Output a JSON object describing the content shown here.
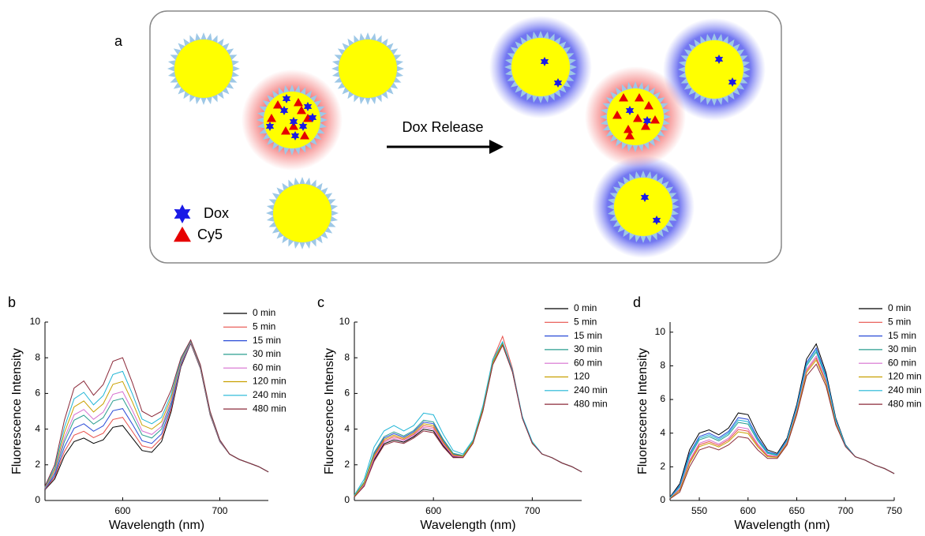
{
  "diagram": {
    "panel_label": "a",
    "arrow_label": "Dox Release",
    "legend": [
      "Dox",
      "Cy5"
    ]
  },
  "chart_data": [
    {
      "type": "line",
      "label": "b",
      "xlabel": "Wavelength (nm)",
      "ylabel": "Fluorescence Intensity",
      "x": [
        520,
        530,
        540,
        550,
        560,
        570,
        580,
        590,
        600,
        610,
        620,
        630,
        640,
        650,
        660,
        670,
        680,
        690,
        700,
        710,
        720,
        730,
        740,
        750
      ],
      "xlim": [
        520,
        750
      ],
      "xticks": [
        600,
        700
      ],
      "ylim": [
        0,
        10
      ],
      "yticks": [
        0,
        2,
        4,
        6,
        8,
        10
      ],
      "series": [
        {
          "name": "0 min",
          "color": "#000000",
          "values": [
            0.6,
            1.2,
            2.5,
            3.3,
            3.5,
            3.2,
            3.4,
            4.1,
            4.2,
            3.5,
            2.8,
            2.7,
            3.3,
            5.0,
            7.5,
            8.8,
            7.4,
            4.8,
            3.3,
            2.6,
            2.3,
            2.1,
            1.9,
            1.6
          ]
        },
        {
          "name": "5 min",
          "color": "#e8504a",
          "values": [
            0.62,
            1.3,
            2.74,
            3.66,
            3.88,
            3.52,
            3.77,
            4.54,
            4.66,
            3.87,
            3.06,
            2.94,
            3.5,
            5.14,
            7.56,
            8.82,
            7.42,
            4.82,
            3.31,
            2.6,
            2.3,
            2.1,
            1.9,
            1.6
          ]
        },
        {
          "name": "15 min",
          "color": "#2a4bd7",
          "values": [
            0.65,
            1.4,
            3.0,
            4.05,
            4.3,
            3.88,
            4.18,
            5.03,
            5.15,
            4.28,
            3.35,
            3.2,
            3.73,
            5.3,
            7.63,
            8.85,
            7.45,
            4.85,
            3.33,
            2.6,
            2.3,
            2.1,
            1.9,
            1.6
          ]
        },
        {
          "name": "30 min",
          "color": "#2a9d8f",
          "values": [
            0.68,
            1.52,
            3.3,
            4.5,
            4.78,
            4.28,
            4.64,
            5.58,
            5.72,
            4.74,
            3.68,
            3.5,
            4.0,
            5.48,
            7.7,
            8.88,
            7.48,
            4.88,
            3.34,
            2.6,
            2.3,
            2.1,
            1.9,
            1.6
          ]
        },
        {
          "name": "60 min",
          "color": "#d66fd0",
          "values": [
            0.7,
            1.6,
            3.5,
            4.8,
            5.1,
            4.55,
            4.95,
            5.95,
            6.1,
            5.05,
            3.9,
            3.7,
            4.15,
            5.6,
            7.75,
            8.9,
            7.5,
            4.9,
            3.35,
            2.6,
            2.3,
            2.1,
            1.9,
            1.6
          ]
        },
        {
          "name": "120 min",
          "color": "#c8a000",
          "values": [
            0.73,
            1.72,
            3.8,
            5.25,
            5.58,
            4.96,
            5.42,
            6.51,
            6.67,
            5.52,
            4.23,
            4.0,
            4.41,
            5.78,
            7.83,
            8.93,
            7.53,
            4.93,
            3.37,
            2.6,
            2.3,
            2.1,
            1.9,
            1.6
          ]
        },
        {
          "name": "240 min",
          "color": "#1fb5d6",
          "values": [
            0.76,
            1.84,
            4.1,
            5.7,
            6.06,
            5.36,
            5.88,
            7.06,
            7.24,
            5.98,
            4.56,
            4.3,
            4.66,
            5.96,
            7.9,
            8.96,
            7.56,
            4.96,
            3.38,
            2.6,
            2.3,
            2.1,
            1.9,
            1.6
          ]
        },
        {
          "name": "480 min",
          "color": "#8b2a3a",
          "values": [
            0.8,
            2.0,
            4.5,
            6.3,
            6.7,
            5.9,
            6.5,
            7.8,
            8.0,
            6.6,
            5.0,
            4.7,
            5.0,
            6.2,
            8.0,
            9.0,
            7.6,
            5.0,
            3.4,
            2.6,
            2.3,
            2.1,
            1.9,
            1.6
          ]
        }
      ]
    },
    {
      "type": "line",
      "label": "c",
      "xlabel": "Wavelength (nm)",
      "ylabel": "Fluorescence Intensity",
      "x": [
        520,
        530,
        540,
        550,
        560,
        570,
        580,
        590,
        600,
        610,
        620,
        630,
        640,
        650,
        660,
        670,
        680,
        690,
        700,
        710,
        720,
        730,
        740,
        750
      ],
      "xlim": [
        520,
        750
      ],
      "xticks": [
        600,
        700
      ],
      "ylim": [
        0,
        10
      ],
      "yticks": [
        0,
        2,
        4,
        6,
        8,
        10
      ],
      "series": [
        {
          "name": "0 min",
          "color": "#000000",
          "values": [
            0.21,
            0.84,
            2.28,
            3.18,
            3.39,
            3.27,
            3.57,
            4.0,
            3.9,
            3.07,
            2.44,
            2.42,
            3.22,
            5.03,
            7.63,
            8.72,
            7.21,
            4.61,
            3.21,
            2.6,
            2.4,
            2.1,
            1.9,
            1.6
          ]
        },
        {
          "name": "5 min",
          "color": "#e8504a",
          "values": [
            0.23,
            0.92,
            2.44,
            3.34,
            3.57,
            3.41,
            3.71,
            4.2,
            4.1,
            3.21,
            2.52,
            2.46,
            3.26,
            5.09,
            7.9,
            9.2,
            7.4,
            4.63,
            3.23,
            2.6,
            2.4,
            2.1,
            1.9,
            1.6
          ]
        },
        {
          "name": "15 min",
          "color": "#2a4bd7",
          "values": [
            0.25,
            1.0,
            2.6,
            3.5,
            3.75,
            3.55,
            3.85,
            4.4,
            4.3,
            3.35,
            2.6,
            2.5,
            3.3,
            5.15,
            7.75,
            8.8,
            7.25,
            4.65,
            3.25,
            2.6,
            2.4,
            2.1,
            1.9,
            1.6
          ]
        },
        {
          "name": "30 min",
          "color": "#2a9d8f",
          "values": [
            0.26,
            1.04,
            2.68,
            3.58,
            3.84,
            3.62,
            3.92,
            4.5,
            4.4,
            3.42,
            2.64,
            2.52,
            3.32,
            5.18,
            7.78,
            8.82,
            7.26,
            4.66,
            3.26,
            2.6,
            2.4,
            2.1,
            1.9,
            1.6
          ]
        },
        {
          "name": "60 min",
          "color": "#d66fd0",
          "values": [
            0.22,
            0.88,
            2.36,
            3.26,
            3.48,
            3.34,
            3.64,
            4.1,
            4.0,
            3.14,
            2.48,
            2.44,
            3.24,
            5.06,
            7.66,
            8.74,
            7.22,
            4.62,
            3.22,
            2.6,
            2.4,
            2.1,
            1.9,
            1.6
          ]
        },
        {
          "name": "120",
          "color": "#c8a000",
          "values": [
            0.24,
            0.96,
            2.52,
            3.42,
            3.66,
            3.48,
            3.78,
            4.3,
            4.2,
            3.28,
            2.56,
            2.48,
            3.28,
            5.12,
            7.72,
            8.78,
            7.24,
            4.64,
            3.24,
            2.6,
            2.4,
            2.1,
            1.9,
            1.6
          ]
        },
        {
          "name": "240 min",
          "color": "#1fb5d6",
          "values": [
            0.3,
            1.2,
            3.0,
            3.9,
            4.2,
            3.9,
            4.2,
            4.9,
            4.8,
            3.7,
            2.8,
            2.6,
            3.4,
            5.3,
            7.9,
            8.9,
            7.3,
            4.7,
            3.3,
            2.6,
            2.4,
            2.1,
            1.9,
            1.6
          ]
        },
        {
          "name": "480 min",
          "color": "#8b2a3a",
          "values": [
            0.2,
            0.8,
            2.2,
            3.1,
            3.3,
            3.2,
            3.5,
            3.9,
            3.8,
            3.0,
            2.4,
            2.4,
            3.2,
            5.0,
            7.6,
            8.7,
            7.2,
            4.6,
            3.2,
            2.6,
            2.4,
            2.1,
            1.9,
            1.6
          ]
        }
      ]
    },
    {
      "type": "line",
      "label": "d",
      "xlabel": "Wavelength (nm)",
      "ylabel": "Fluorescence Intensity",
      "x": [
        520,
        530,
        540,
        550,
        560,
        570,
        580,
        590,
        600,
        610,
        620,
        630,
        640,
        650,
        660,
        670,
        680,
        690,
        700,
        710,
        720,
        730,
        740,
        750
      ],
      "xlim": [
        520,
        750
      ],
      "xticks": [
        550,
        600,
        650,
        700,
        750
      ],
      "ylim": [
        0,
        10.6
      ],
      "yticks": [
        0,
        2,
        4,
        6,
        8,
        10
      ],
      "series": [
        {
          "name": "0 min",
          "color": "#000000",
          "values": [
            0.2,
            1.0,
            3.0,
            4.0,
            4.2,
            3.9,
            4.3,
            5.2,
            5.1,
            3.9,
            3.0,
            2.8,
            3.7,
            5.7,
            8.4,
            9.3,
            7.6,
            4.9,
            3.3,
            2.6,
            2.4,
            2.1,
            1.9,
            1.6
          ]
        },
        {
          "name": "5 min",
          "color": "#e8504a",
          "values": [
            0.13,
            0.65,
            2.3,
            3.3,
            3.5,
            3.27,
            3.6,
            4.22,
            4.12,
            3.27,
            2.65,
            2.59,
            3.42,
            5.28,
            7.7,
            8.46,
            7.04,
            4.62,
            3.23,
            2.6,
            2.4,
            2.1,
            1.9,
            1.6
          ]
        },
        {
          "name": "15 min",
          "color": "#2a4bd7",
          "values": [
            0.18,
            0.9,
            2.8,
            3.8,
            4.0,
            3.72,
            4.1,
            4.92,
            4.82,
            3.72,
            2.9,
            2.74,
            3.62,
            5.58,
            8.2,
            9.06,
            7.44,
            4.82,
            3.28,
            2.6,
            2.4,
            2.1,
            1.9,
            1.6
          ]
        },
        {
          "name": "30 min",
          "color": "#2a9d8f",
          "values": [
            0.16,
            0.8,
            2.6,
            3.6,
            3.8,
            3.54,
            3.9,
            4.64,
            4.54,
            3.54,
            2.8,
            2.68,
            3.54,
            5.46,
            8.0,
            8.82,
            7.28,
            4.74,
            3.26,
            2.6,
            2.4,
            2.1,
            1.9,
            1.6
          ]
        },
        {
          "name": "60 min",
          "color": "#d66fd0",
          "values": [
            0.14,
            0.7,
            2.4,
            3.4,
            3.6,
            3.36,
            3.7,
            4.36,
            4.26,
            3.36,
            2.7,
            2.62,
            3.46,
            5.34,
            7.8,
            8.58,
            7.12,
            4.66,
            3.24,
            2.6,
            2.4,
            2.1,
            1.9,
            1.6
          ]
        },
        {
          "name": "120 min",
          "color": "#c8a000",
          "values": [
            0.12,
            0.6,
            2.2,
            3.2,
            3.4,
            3.18,
            3.5,
            4.08,
            3.98,
            3.18,
            2.6,
            2.56,
            3.38,
            5.22,
            7.6,
            8.34,
            6.96,
            4.58,
            3.22,
            2.6,
            2.4,
            2.1,
            1.9,
            1.6
          ]
        },
        {
          "name": "240 min",
          "color": "#1fb5d6",
          "values": [
            0.17,
            0.85,
            2.7,
            3.7,
            3.9,
            3.63,
            4.0,
            4.78,
            4.68,
            3.63,
            2.85,
            2.71,
            3.58,
            5.52,
            8.1,
            8.94,
            7.36,
            4.78,
            3.27,
            2.6,
            2.4,
            2.1,
            1.9,
            1.6
          ]
        },
        {
          "name": "480 min",
          "color": "#8b2a3a",
          "values": [
            0.1,
            0.5,
            2.0,
            3.0,
            3.2,
            3.0,
            3.3,
            3.8,
            3.7,
            3.0,
            2.5,
            2.5,
            3.3,
            5.1,
            7.4,
            8.1,
            6.8,
            4.5,
            3.2,
            2.6,
            2.4,
            2.1,
            1.9,
            1.6
          ]
        }
      ]
    }
  ]
}
